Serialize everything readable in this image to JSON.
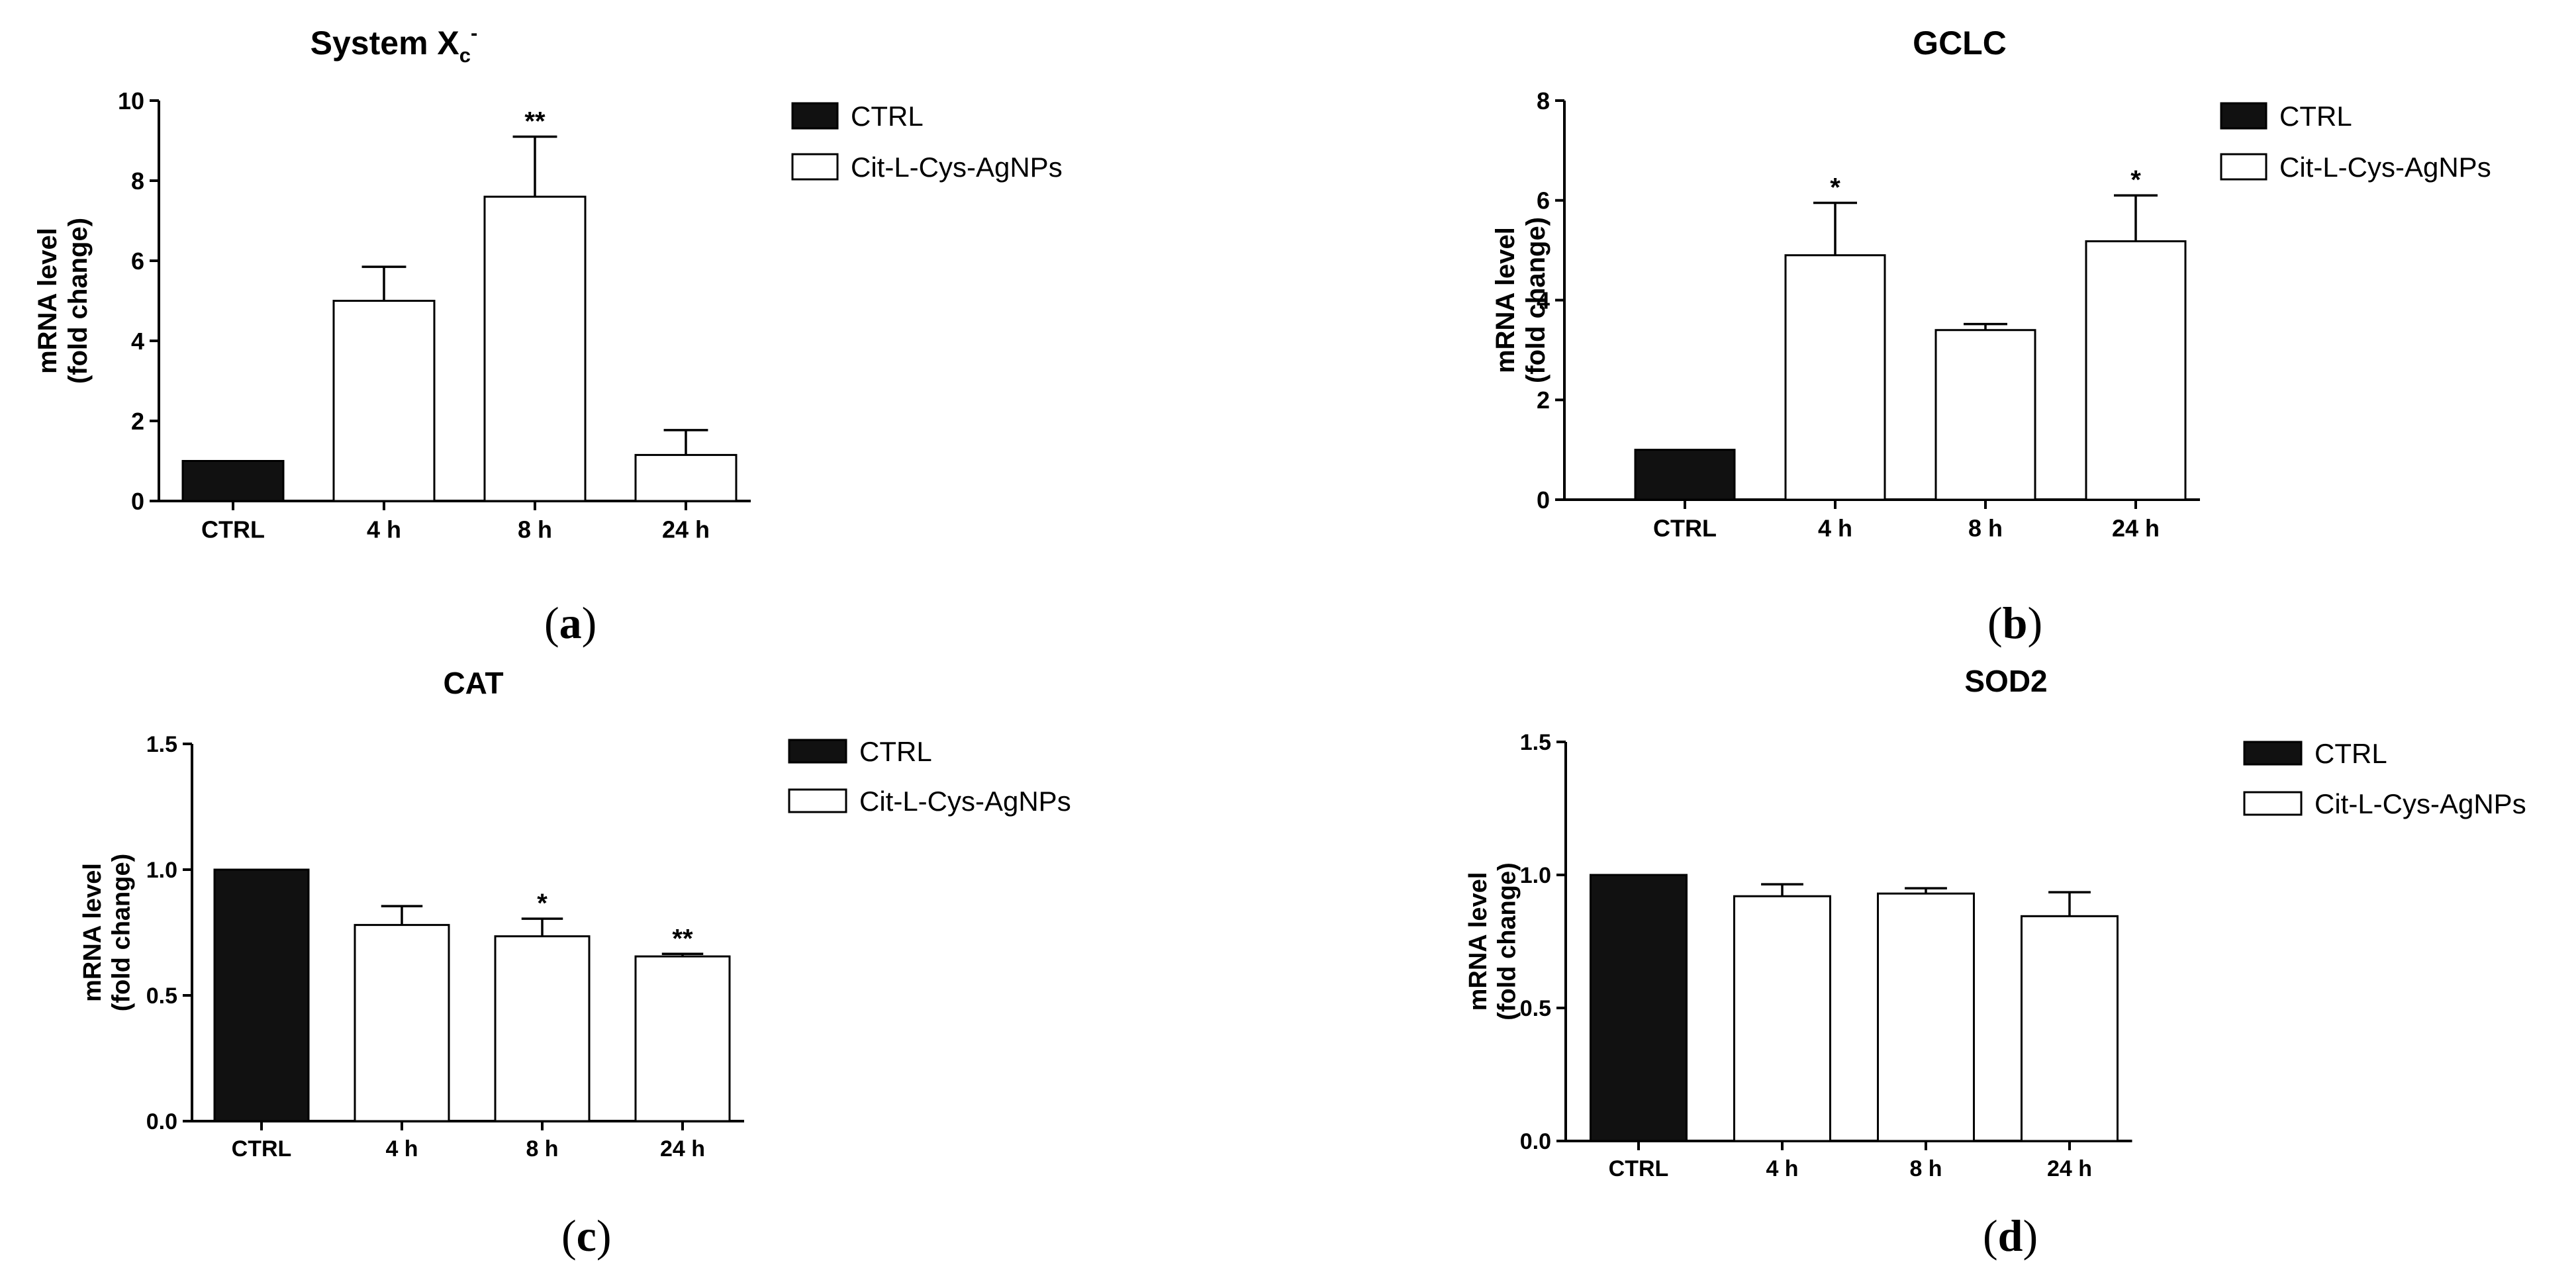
{
  "panel_labels": [
    "a",
    "b",
    "c",
    "d"
  ],
  "legend": [
    {
      "label": "CTRL",
      "fill": "#111111"
    },
    {
      "label": "Cit-L-Cys-AgNPs",
      "fill": "#ffffff"
    }
  ],
  "colors": {
    "ctrl": "#111111",
    "treated": "#ffffff",
    "stroke": "#000000"
  },
  "chart_data": [
    {
      "type": "bar",
      "title": "System X",
      "title_sub": "c",
      "title_sup": "-",
      "ylabel": [
        "mRNA level",
        "(fold change)"
      ],
      "categories": [
        "CTRL",
        "4 h",
        "8 h",
        "24 h"
      ],
      "values": [
        1.0,
        5.0,
        7.6,
        1.15
      ],
      "errors": [
        0,
        0.85,
        1.5,
        0.62
      ],
      "significance": [
        "",
        "",
        "**",
        ""
      ],
      "ylim": [
        0,
        10
      ],
      "yticks": [
        "0",
        "2",
        "4",
        "6",
        "8",
        "10"
      ],
      "grid": false,
      "legend_position": "top-right"
    },
    {
      "type": "bar",
      "title": "GCLC",
      "ylabel": [
        "mRNA level",
        "(fold change)"
      ],
      "categories": [
        "CTRL",
        "4 h",
        "8 h",
        "24 h"
      ],
      "values": [
        1.0,
        4.9,
        3.4,
        5.18
      ],
      "errors": [
        0,
        1.05,
        0.12,
        0.92
      ],
      "significance": [
        "",
        "*",
        "",
        "*"
      ],
      "ylim": [
        0,
        8
      ],
      "yticks": [
        "0",
        "2",
        "4",
        "6",
        "8"
      ],
      "grid": false,
      "legend_position": "top-right"
    },
    {
      "type": "bar",
      "title": "CAT",
      "ylabel": [
        "mRNA level",
        "(fold change)"
      ],
      "categories": [
        "CTRL",
        "4 h",
        "8 h",
        "24 h"
      ],
      "values": [
        1.0,
        0.78,
        0.735,
        0.655
      ],
      "errors": [
        0,
        0.075,
        0.07,
        0.01
      ],
      "significance": [
        "",
        "",
        "*",
        "**"
      ],
      "ylim": [
        0,
        1.5
      ],
      "yticks": [
        "0.0",
        "0.5",
        "1.0",
        "1.5"
      ],
      "grid": false,
      "legend_position": "top-right"
    },
    {
      "type": "bar",
      "title": "SOD2",
      "ylabel": [
        "mRNA level",
        "(fold change)"
      ],
      "categories": [
        "CTRL",
        "4 h",
        "8 h",
        "24 h"
      ],
      "values": [
        1.0,
        0.92,
        0.93,
        0.845
      ],
      "errors": [
        0,
        0.045,
        0.02,
        0.09
      ],
      "significance": [
        "",
        "",
        "",
        ""
      ],
      "ylim": [
        0,
        1.5
      ],
      "yticks": [
        "0.0",
        "0.5",
        "1.0",
        "1.5"
      ],
      "grid": false,
      "legend_position": "top-right"
    }
  ]
}
